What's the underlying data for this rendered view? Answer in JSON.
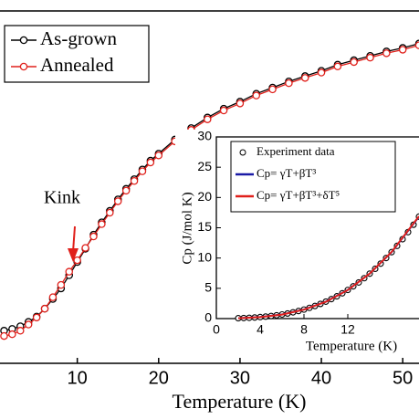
{
  "chart_data": [
    {
      "type": "line",
      "xlabel": "Temperature (K)",
      "annotation": "Kink",
      "xlim": [
        0.5,
        52
      ],
      "ylim": [
        0,
        40
      ],
      "xticks": [
        10,
        20,
        30,
        40,
        50
      ],
      "x": [
        1,
        2,
        3,
        4,
        5,
        6,
        7,
        8,
        9,
        10,
        11,
        12,
        13,
        14,
        15,
        16,
        17,
        18,
        19,
        20,
        22,
        24,
        26,
        28,
        30,
        32,
        34,
        36,
        38,
        40,
        42,
        44,
        46,
        48,
        50,
        52
      ],
      "series": [
        {
          "name": "As-grown",
          "color": "#000000",
          "values": [
            3.7,
            3.9,
            4.2,
            4.7,
            5.3,
            6.2,
            7.3,
            8.5,
            10.0,
            11.5,
            13.0,
            14.6,
            16.0,
            17.3,
            18.6,
            19.8,
            20.9,
            22.0,
            23.0,
            23.8,
            25.4,
            26.7,
            27.9,
            28.9,
            29.7,
            30.6,
            31.3,
            32.0,
            32.6,
            33.2,
            33.9,
            34.4,
            34.9,
            35.4,
            35.8,
            36.3
          ]
        },
        {
          "name": "Annealed",
          "color": "#e0201b",
          "values": [
            3.1,
            3.3,
            3.7,
            4.4,
            5.2,
            6.2,
            7.5,
            8.9,
            10.4,
            11.7,
            13.1,
            14.4,
            15.8,
            17.1,
            18.4,
            19.6,
            20.7,
            21.8,
            22.8,
            23.6,
            25.2,
            26.5,
            27.7,
            28.7,
            29.5,
            30.4,
            31.1,
            31.8,
            32.4,
            33.0,
            33.7,
            34.2,
            34.7,
            35.2,
            35.6,
            36.1
          ]
        }
      ]
    },
    {
      "type": "line",
      "xlabel": "Temperature (K)",
      "ylabel": "Cp (J/mol K)",
      "xlim": [
        0,
        18.5
      ],
      "ylim": [
        0,
        30
      ],
      "xticks": [
        0,
        4,
        8,
        12
      ],
      "yticks": [
        0,
        5,
        10,
        15,
        20,
        25,
        30
      ],
      "series": [
        {
          "name": "Experiment data",
          "color": "#000000",
          "mode": "markers",
          "x": [
            2,
            2.5,
            3,
            3.5,
            4,
            4.5,
            5,
            5.5,
            6,
            6.5,
            7,
            7.5,
            8,
            8.5,
            9,
            9.5,
            10,
            10.5,
            11,
            11.5,
            12,
            12.5,
            13,
            13.5,
            14,
            14.5,
            15,
            15.5,
            16,
            16.5,
            17,
            17.5,
            18,
            18.5
          ],
          "values": [
            0.06,
            0.09,
            0.13,
            0.18,
            0.25,
            0.33,
            0.43,
            0.54,
            0.68,
            0.84,
            1.03,
            1.25,
            1.49,
            1.77,
            2.08,
            2.42,
            2.8,
            3.22,
            3.68,
            4.18,
            4.73,
            5.33,
            5.97,
            6.67,
            7.42,
            8.22,
            9.08,
            10.0,
            10.97,
            12.01,
            13.11,
            14.28,
            15.5,
            16.83
          ]
        },
        {
          "name": "Cp= γT+βT³",
          "color": "#1a1aa6",
          "mode": "lines",
          "x": [
            2,
            4,
            6,
            8,
            10,
            12,
            14,
            16,
            18.5
          ],
          "values": [
            0.06,
            0.25,
            0.68,
            1.49,
            2.8,
            4.73,
            7.42,
            10.97,
            16.83
          ]
        },
        {
          "name": "Cp= γT+βT³+δT⁵",
          "color": "#e0201b",
          "mode": "lines",
          "x": [
            2,
            4,
            6,
            8,
            10,
            12,
            14,
            16,
            18.5
          ],
          "values": [
            0.06,
            0.24,
            0.66,
            1.47,
            2.78,
            4.72,
            7.43,
            11.0,
            16.9
          ]
        }
      ]
    }
  ]
}
